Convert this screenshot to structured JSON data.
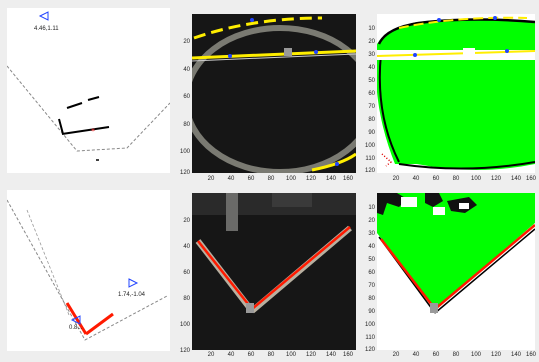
{
  "figure_background": "#eeeeee",
  "colors": {
    "green": "#00ff00",
    "yellow": "#ffee00",
    "red": "#ff1a00",
    "marker_blue": "#2244ff",
    "path_gray": "#888888"
  },
  "icons": [
    "robot-pose-arrow-icon",
    "target-arrow-icon"
  ],
  "row1": {
    "map_label": "4.46,1.11"
  },
  "row2": {
    "map_label_target": "1.74,-1.04",
    "map_label_robot": "0.8..."
  },
  "photo_axis": {
    "y_ticks": [
      "20",
      "40",
      "60",
      "80",
      "100",
      "120"
    ],
    "x_ticks": [
      "20",
      "40",
      "60",
      "80",
      "100",
      "120",
      "140",
      "160"
    ]
  },
  "seg_axis": {
    "y_ticks": [
      "10",
      "20",
      "30",
      "40",
      "50",
      "60",
      "70",
      "80",
      "90",
      "100",
      "110",
      "120"
    ],
    "x_ticks": [
      "20",
      "40",
      "60",
      "80",
      "100",
      "120",
      "140",
      "160"
    ]
  }
}
